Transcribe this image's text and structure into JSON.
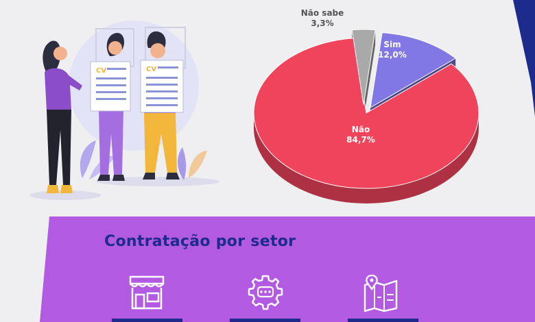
{
  "chart_data": {
    "type": "pie",
    "slices": [
      {
        "label": "Sim",
        "value": 12.0,
        "display": "12,0%",
        "color": "#8178e6"
      },
      {
        "label": "Não",
        "value": 84.7,
        "display": "84,7%",
        "color": "#f0445c"
      },
      {
        "label": "Não sabe",
        "value": 3.3,
        "display": "3,3%",
        "color": "#a9a9a9"
      }
    ]
  },
  "banner": {
    "title": "Contratação por setor",
    "background": "#b35ae2",
    "icons": [
      "store-icon",
      "gear-chat-icon",
      "map-location-icon"
    ]
  },
  "colors": {
    "accent_right": "#1d2b8c",
    "title": "#1d2b8c"
  }
}
